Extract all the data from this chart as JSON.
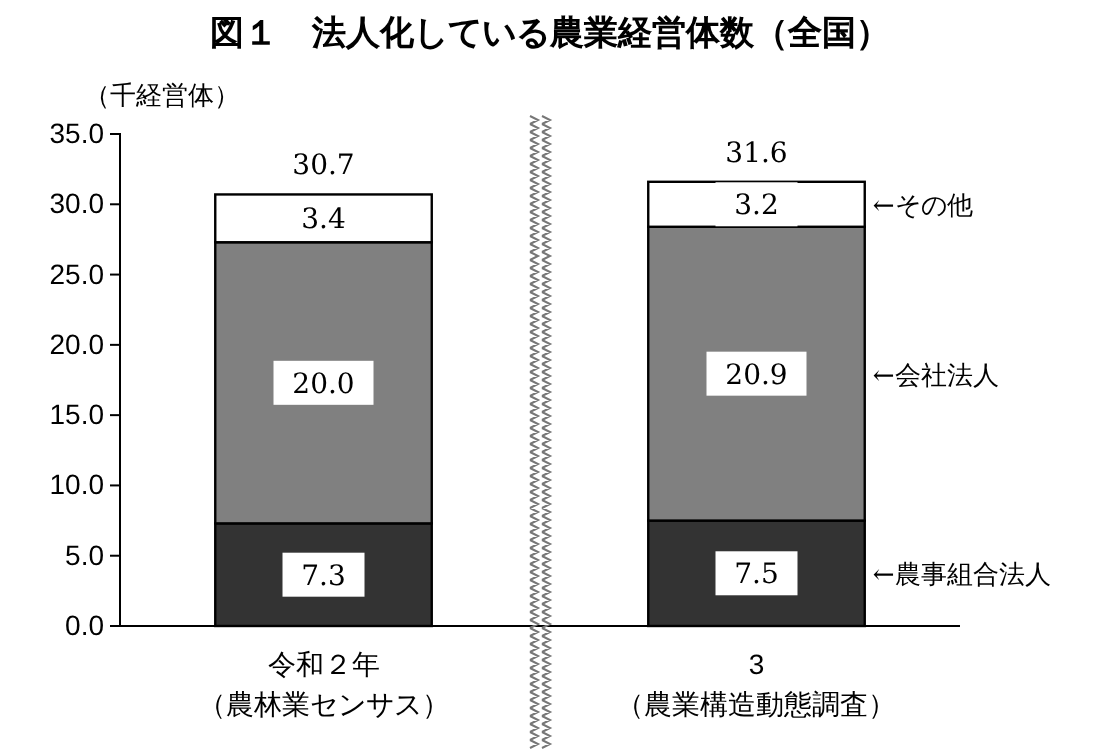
{
  "chart_data": {
    "type": "bar",
    "stacked": true,
    "title": "図１　法人化している農業経営体数（全国）",
    "ylabel": "（千経営体）",
    "categories": [
      "令和２年（農林業センサス）",
      "3（農業構造動態調査）"
    ],
    "series": [
      {
        "name": "←農事組合法人",
        "color": "#333333",
        "values": [
          7.3,
          7.5
        ],
        "value_labels": [
          "7.3",
          "7.5"
        ]
      },
      {
        "name": "←会社法人",
        "color": "#808080",
        "values": [
          20.0,
          20.9
        ],
        "value_labels": [
          "20.0",
          "20.9"
        ]
      },
      {
        "name": "←その他",
        "color": "#ffffff",
        "values": [
          3.4,
          3.2
        ],
        "value_labels": [
          "3.4",
          "3.2"
        ]
      }
    ],
    "totals": [
      "30.7",
      "31.6"
    ],
    "ylim": [
      0,
      35
    ],
    "yticks": [
      {
        "value": 0,
        "label": "0.0"
      },
      {
        "value": 5,
        "label": "5.0"
      },
      {
        "value": 10,
        "label": "10.0"
      },
      {
        "value": 15,
        "label": "15.0"
      },
      {
        "value": 20,
        "label": "20.0"
      },
      {
        "value": 25,
        "label": "25.0"
      },
      {
        "value": 30,
        "label": "30.0"
      },
      {
        "value": 35,
        "label": "35.0"
      }
    ],
    "grid": false,
    "legend": false
  }
}
